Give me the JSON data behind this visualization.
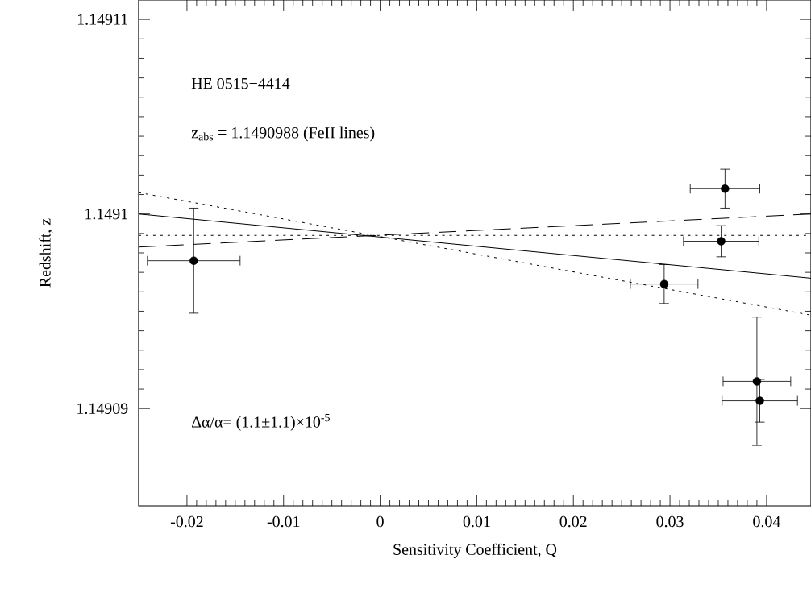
{
  "chart_data": {
    "type": "scatter",
    "xlabel": "Sensitivity Coefficient, Q",
    "ylabel": "Redshift, z",
    "annotations": [
      "HE 0515−4414",
      "z$_{abs}$ = 1.1490988 (FeII lines)",
      "Δα/α= (1.1±1.1)×10$^{-5}$"
    ],
    "xlim": [
      -0.025,
      0.0446
    ],
    "ylim": [
      1.149085,
      1.149111
    ],
    "xticks": [
      -0.02,
      -0.01,
      0,
      0.01,
      0.02,
      0.03,
      0.04
    ],
    "yticks": [
      1.14909,
      1.1491,
      1.14911
    ],
    "grid": false,
    "series": [
      {
        "color": "#000000",
        "marker": "circle",
        "x": [
          -0.0193,
          0.0294,
          0.0353,
          0.0357,
          0.039,
          0.0393
        ],
        "values": [
          1.1490976,
          1.1490964,
          1.1490986,
          1.1491013,
          1.1490914,
          1.1490904
        ],
        "errors": [
          2.7e-06,
          1e-06,
          8e-07,
          1e-06,
          3.3e-06,
          1.1e-06
        ],
        "xerrors": [
          0.0048,
          0.0035,
          0.0039,
          0.0036,
          0.0035,
          0.0039
        ]
      },
      {
        "type": "line",
        "color": "#000000",
        "line_style": "solid",
        "marker": "none",
        "x": [
          -0.025,
          0.0446
        ],
        "values": [
          1.1491,
          1.1490967
        ]
      },
      {
        "type": "line",
        "color": "#000000",
        "line_style": "dashed",
        "marker": "none",
        "x": [
          -0.025,
          0.0446
        ],
        "values": [
          1.1490983,
          1.1491
        ]
      },
      {
        "type": "line",
        "color": "#000000",
        "line_style": "dotted",
        "marker": "none",
        "x": [
          -0.025,
          0.0446
        ],
        "values": [
          1.1491011,
          1.1490948
        ]
      }
    ],
    "ref_lines": [
      {
        "axis": "y",
        "value": 1.1490989,
        "line_style": "dotted",
        "color": "#000000"
      }
    ]
  }
}
